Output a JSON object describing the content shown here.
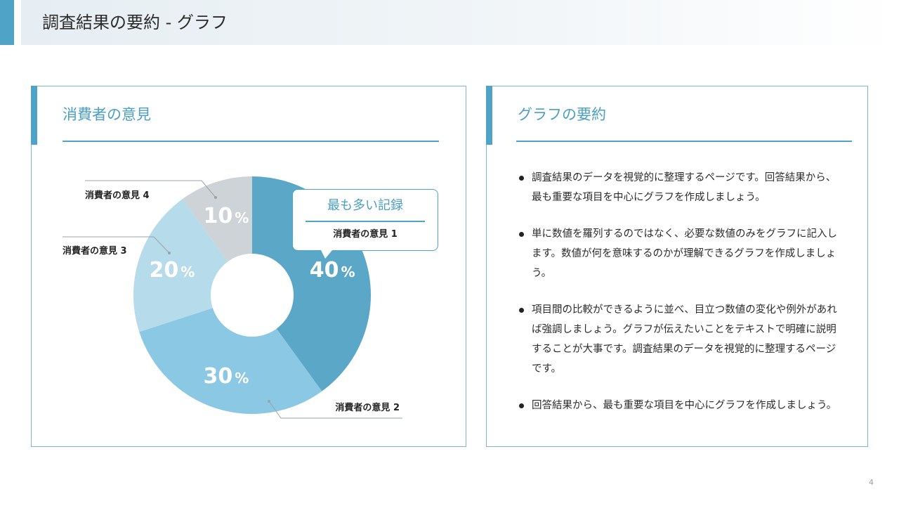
{
  "header": {
    "title": "調査結果の要約 - グラフ"
  },
  "left_card": {
    "title": "消費者の意見",
    "callout": {
      "title": "最も多い記録",
      "subtitle": "消費者の意見 1"
    }
  },
  "right_card": {
    "title": "グラフの要約",
    "bullets": [
      "調査結果のデータを視覚的に整理するページです。回答結果から、最も重要な項目を中心にグラフを作成しましょう。",
      "単に数値を羅列するのではなく、必要な数値のみをグラフに記入します。数値が何を意味するのかが理解できるグラフを作成しましょう。",
      "項目間の比較ができるように並べ、目立つ数値の変化や例外があれば強調しましょう。グラフが伝えたいことをテキストで明確に説明することが大事です。調査結果のデータを視覚的に整理するページです。",
      "回答結果から、最も重要な項目を中心にグラフを作成しましょう。"
    ]
  },
  "page_number": "4",
  "chart_data": {
    "type": "pie",
    "variant": "donut",
    "title": "",
    "categories": [
      "消費者の意見 1",
      "消費者の意見 2",
      "消費者の意見 3",
      "消費者の意見 4"
    ],
    "values": [
      40,
      30,
      20,
      10
    ],
    "value_labels": [
      "40",
      "30",
      "20",
      "10"
    ],
    "unit": "%",
    "colors": [
      "#5aa7c7",
      "#8ac8e4",
      "#b6dbea",
      "#cdd3d6"
    ],
    "highlight": "消費者の意見 1"
  }
}
